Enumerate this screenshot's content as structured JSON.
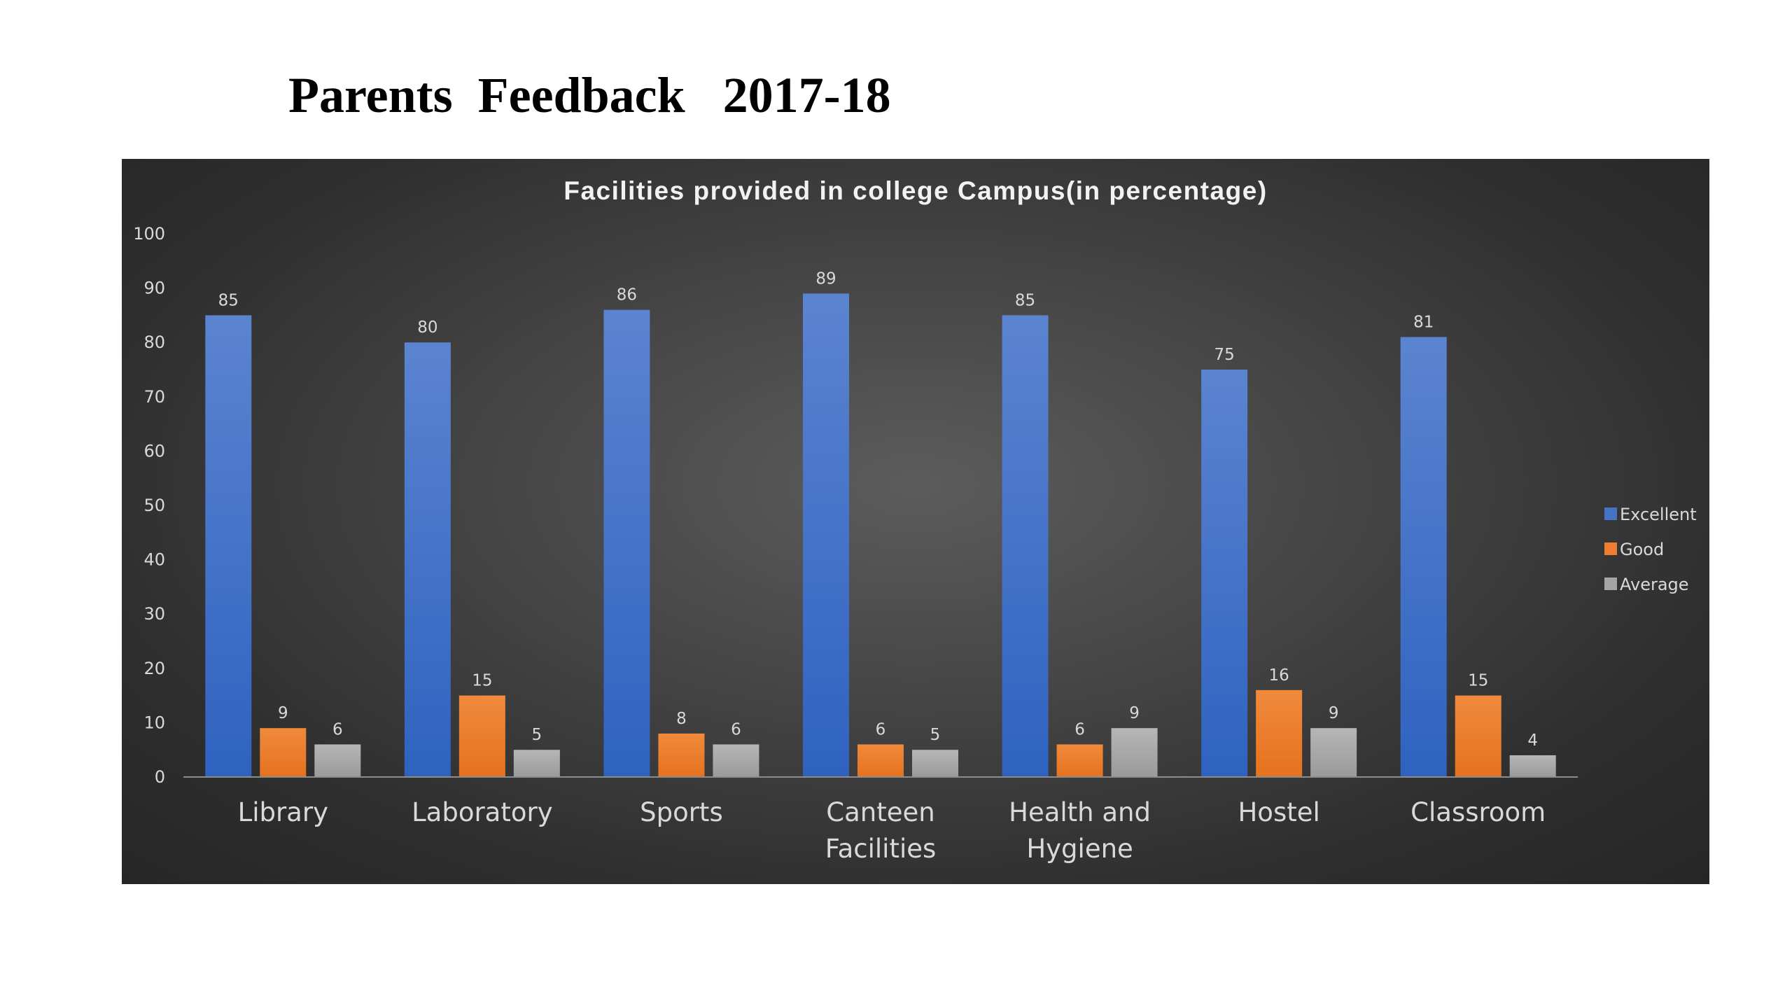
{
  "page": {
    "title": "Parents  Feedback   2017-18"
  },
  "chart_data": {
    "type": "bar",
    "title": "Facilities provided in college Campus(in percentage)",
    "categories": [
      [
        "Library"
      ],
      [
        "Laboratory"
      ],
      [
        "Sports"
      ],
      [
        "Canteen",
        "Facilities"
      ],
      [
        "Health and",
        "Hygiene"
      ],
      [
        "Hostel"
      ],
      [
        "Classroom"
      ]
    ],
    "series": [
      {
        "name": "Excellent",
        "color": "#4472c4",
        "values": [
          85,
          80,
          86,
          89,
          85,
          75,
          81
        ]
      },
      {
        "name": "Good",
        "color": "#ed7d31",
        "values": [
          9,
          15,
          8,
          6,
          6,
          16,
          15
        ]
      },
      {
        "name": "Average",
        "color": "#a5a5a5",
        "values": [
          6,
          5,
          6,
          5,
          9,
          9,
          4
        ]
      }
    ],
    "ylim": [
      0,
      100
    ],
    "yticks": [
      0,
      10,
      20,
      30,
      40,
      50,
      60,
      70,
      80,
      90,
      100
    ],
    "xlabel": "",
    "ylabel": "",
    "grid": false,
    "data_labels": true,
    "legend_position": "right",
    "background": "#3a3a3a"
  }
}
